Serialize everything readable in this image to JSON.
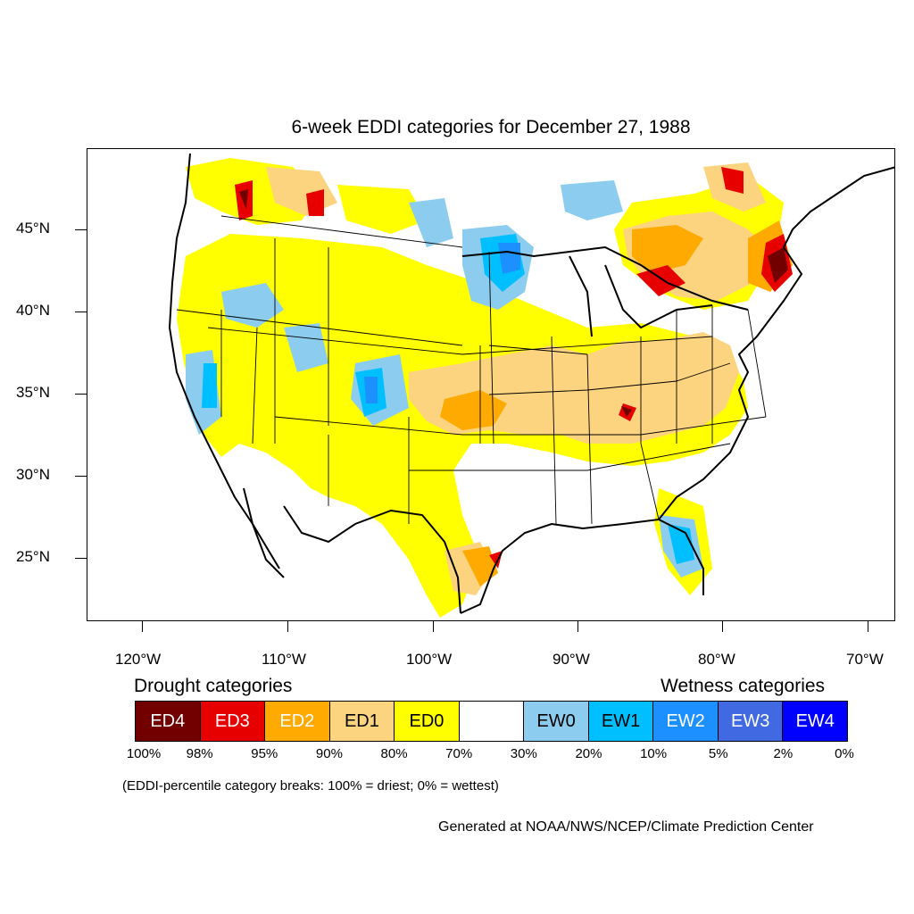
{
  "title": "6-week EDDI categories for December 27, 1988",
  "lat_labels": [
    "45°N",
    "40°N",
    "35°N",
    "30°N",
    "25°N"
  ],
  "lon_labels": [
    "120°W",
    "110°W",
    "100°W",
    "90°W",
    "80°W",
    "70°W"
  ],
  "legend": {
    "drought_heading": "Drought categories",
    "wetness_heading": "Wetness categories",
    "categories": [
      {
        "label": "ED4",
        "color": "#730000",
        "text_color": "#ffffff"
      },
      {
        "label": "ED3",
        "color": "#e60000",
        "text_color": "#ffffff"
      },
      {
        "label": "ED2",
        "color": "#ffaa00",
        "text_color": "#ffffff"
      },
      {
        "label": "ED1",
        "color": "#fcd37f",
        "text_color": "#000000"
      },
      {
        "label": "ED0",
        "color": "#ffff00",
        "text_color": "#000000"
      },
      {
        "label": "",
        "color": "#ffffff",
        "text_color": "#000000"
      },
      {
        "label": "EW0",
        "color": "#8ccdef",
        "text_color": "#000000"
      },
      {
        "label": "EW1",
        "color": "#00bfff",
        "text_color": "#000000"
      },
      {
        "label": "EW2",
        "color": "#1d90ff",
        "text_color": "#ffffff"
      },
      {
        "label": "EW3",
        "color": "#4169e1",
        "text_color": "#ffffff"
      },
      {
        "label": "EW4",
        "color": "#0000ff",
        "text_color": "#ffffff"
      }
    ],
    "breaks": [
      "100%",
      "98%",
      "95%",
      "90%",
      "80%",
      "70%",
      "30%",
      "20%",
      "10%",
      "5%",
      "2%",
      "0%"
    ]
  },
  "note": "(EDDI-percentile category breaks: 100% = driest; 0% = wettest)",
  "credit": "Generated at NOAA/NWS/NCEP/Climate Prediction Center"
}
